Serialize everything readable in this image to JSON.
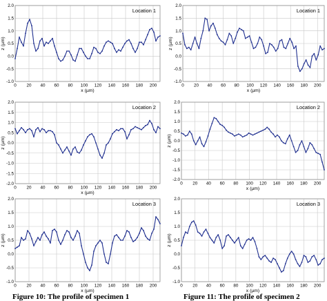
{
  "colors": {
    "line": "#1f2f8f",
    "marker": "#1f2f8f",
    "grid": "#c8c8c8",
    "frame": "#8c8c8c"
  },
  "captions": {
    "left": "Figure 10: The profile of specimen 1",
    "right": "Figure 11: The profile of specimen 2"
  },
  "chart_data": [
    {
      "type": "line",
      "specimen": 1,
      "location": "Location 1",
      "xlabel": "x (µm)",
      "ylabel": "z (µm)",
      "xlim": [
        0,
        210
      ],
      "ylim": [
        -1.0,
        2.0
      ],
      "xticks": [
        0,
        20,
        40,
        60,
        80,
        100,
        120,
        140,
        160,
        180,
        200
      ],
      "yticks": [
        "2.0",
        "1.5",
        "1.0",
        "0.5",
        "0.0",
        "-0.5",
        "-1.0"
      ],
      "x": [
        0,
        3,
        6,
        9,
        12,
        15,
        18,
        21,
        24,
        27,
        30,
        33,
        36,
        39,
        42,
        45,
        48,
        51,
        54,
        57,
        60,
        63,
        66,
        69,
        72,
        75,
        78,
        81,
        84,
        87,
        90,
        93,
        96,
        99,
        102,
        105,
        108,
        111,
        114,
        117,
        120,
        123,
        126,
        129,
        132,
        135,
        138,
        141,
        144,
        147,
        150,
        153,
        156,
        159,
        162,
        165,
        168,
        171,
        174,
        177,
        180,
        183,
        186,
        189,
        192,
        195,
        198,
        201,
        204,
        207,
        210
      ],
      "y": [
        -0.1,
        0.3,
        0.75,
        0.55,
        0.4,
        0.9,
        1.3,
        1.45,
        1.2,
        0.5,
        0.2,
        0.3,
        0.6,
        0.7,
        0.4,
        0.55,
        0.5,
        0.6,
        0.7,
        0.4,
        0.15,
        -0.1,
        -0.2,
        -0.15,
        0.0,
        0.2,
        0.2,
        0.05,
        -0.15,
        -0.2,
        0.05,
        0.3,
        0.3,
        0.15,
        0.0,
        -0.1,
        -0.1,
        0.1,
        0.35,
        0.3,
        0.15,
        0.1,
        0.2,
        0.4,
        0.55,
        0.6,
        0.55,
        0.5,
        0.3,
        0.15,
        0.25,
        0.2,
        0.35,
        0.5,
        0.6,
        0.65,
        0.5,
        0.3,
        0.15,
        0.3,
        0.55,
        0.55,
        0.45,
        0.65,
        0.85,
        1.05,
        1.1,
        0.95,
        0.6,
        0.75,
        0.8
      ]
    },
    {
      "type": "line",
      "specimen": 1,
      "location": "Location 2",
      "xlabel": "x (µm)",
      "ylabel": "z (µm)",
      "xlim": [
        0,
        210
      ],
      "ylim": [
        -2.0,
        2.0
      ],
      "xticks": [
        0,
        20,
        40,
        60,
        80,
        100,
        120,
        140,
        160,
        180,
        200
      ],
      "yticks": [
        "2.0",
        "1.5",
        "1.0",
        "0.5",
        "0.0",
        "-0.5",
        "-1.0",
        "-1.5",
        "-2.0"
      ],
      "x": [
        0,
        3,
        6,
        9,
        12,
        15,
        18,
        21,
        24,
        27,
        30,
        33,
        36,
        39,
        42,
        45,
        48,
        51,
        54,
        57,
        60,
        63,
        66,
        69,
        72,
        75,
        78,
        81,
        84,
        87,
        90,
        93,
        96,
        99,
        102,
        105,
        108,
        111,
        114,
        117,
        120,
        123,
        126,
        129,
        132,
        135,
        138,
        141,
        144,
        147,
        150,
        153,
        156,
        159,
        162,
        165,
        168,
        171,
        174,
        177,
        180,
        183,
        186,
        189,
        192,
        195,
        198,
        201,
        204,
        207,
        210
      ],
      "y": [
        0.7,
        0.45,
        0.6,
        0.75,
        0.65,
        0.5,
        0.65,
        0.7,
        0.6,
        0.3,
        0.65,
        0.75,
        0.55,
        0.7,
        0.65,
        0.5,
        0.6,
        0.6,
        0.55,
        0.4,
        0.0,
        -0.1,
        -0.3,
        -0.5,
        -0.35,
        -0.2,
        -0.4,
        -0.6,
        -0.3,
        -0.2,
        -0.45,
        -0.5,
        -0.35,
        -0.1,
        0.1,
        0.3,
        0.4,
        0.45,
        0.3,
        0.0,
        -0.3,
        -0.6,
        -0.75,
        -0.5,
        -0.1,
        0.0,
        0.2,
        0.45,
        0.55,
        0.65,
        0.6,
        0.7,
        0.7,
        0.55,
        0.2,
        0.4,
        0.65,
        0.7,
        0.8,
        0.75,
        0.7,
        0.65,
        0.75,
        0.85,
        0.9,
        1.1,
        0.95,
        0.65,
        0.5,
        0.8,
        0.7
      ]
    },
    {
      "type": "line",
      "specimen": 1,
      "location": "Location 3",
      "xlabel": "x (µm)",
      "ylabel": "z (µm)",
      "xlim": [
        0,
        210
      ],
      "ylim": [
        -1.0,
        2.0
      ],
      "xticks": [
        0,
        20,
        40,
        60,
        80,
        100,
        120,
        140,
        160,
        180,
        200
      ],
      "yticks": [
        "2.0",
        "1.5",
        "1.0",
        "0.5",
        "0.0",
        "-0.5",
        "-1.0"
      ],
      "x": [
        0,
        3,
        6,
        9,
        12,
        15,
        18,
        21,
        24,
        27,
        30,
        33,
        36,
        39,
        42,
        45,
        48,
        51,
        54,
        57,
        60,
        63,
        66,
        69,
        72,
        75,
        78,
        81,
        84,
        87,
        90,
        93,
        96,
        99,
        102,
        105,
        108,
        111,
        114,
        117,
        120,
        123,
        126,
        129,
        132,
        135,
        138,
        141,
        144,
        147,
        150,
        153,
        156,
        159,
        162,
        165,
        168,
        171,
        174,
        177,
        180,
        183,
        186,
        189,
        192,
        195,
        198,
        201,
        204,
        207,
        210
      ],
      "y": [
        0.2,
        0.25,
        0.3,
        0.6,
        0.5,
        0.55,
        0.85,
        0.75,
        0.55,
        0.3,
        0.45,
        0.6,
        0.5,
        0.7,
        0.8,
        0.65,
        0.55,
        0.4,
        0.85,
        0.9,
        0.8,
        0.5,
        0.35,
        0.5,
        0.7,
        0.85,
        0.8,
        0.6,
        0.5,
        0.65,
        0.85,
        0.75,
        0.3,
        0.0,
        -0.3,
        -0.5,
        -0.6,
        -0.4,
        0.1,
        0.3,
        0.4,
        0.5,
        0.4,
        0.0,
        -0.3,
        -0.35,
        0.0,
        0.4,
        0.65,
        0.7,
        0.6,
        0.5,
        0.5,
        0.65,
        0.85,
        0.8,
        0.6,
        0.45,
        0.5,
        0.6,
        0.75,
        0.95,
        0.85,
        0.65,
        0.55,
        0.5,
        0.75,
        0.9,
        1.35,
        1.25,
        1.1
      ]
    },
    {
      "type": "line",
      "specimen": 2,
      "location": "Location 1",
      "xlabel": "x (µm)",
      "ylabel": "z (µm)",
      "xlim": [
        0,
        210
      ],
      "ylim": [
        -1.0,
        2.0
      ],
      "xticks": [
        0,
        20,
        40,
        60,
        80,
        100,
        120,
        140,
        160,
        180,
        200
      ],
      "yticks": [
        "2.0",
        "1.5",
        "1.0",
        "0.5",
        "0.0",
        "-0.5",
        "-1.0"
      ],
      "x": [
        0,
        3,
        6,
        9,
        12,
        15,
        18,
        21,
        24,
        27,
        30,
        33,
        36,
        39,
        42,
        45,
        48,
        51,
        54,
        57,
        60,
        63,
        66,
        69,
        72,
        75,
        78,
        81,
        84,
        87,
        90,
        93,
        96,
        99,
        102,
        105,
        108,
        111,
        114,
        117,
        120,
        123,
        126,
        129,
        132,
        135,
        138,
        141,
        144,
        147,
        150,
        153,
        156,
        159,
        162,
        165,
        168,
        171,
        174,
        177,
        180,
        183,
        186,
        189,
        192,
        195,
        198,
        201,
        204,
        207,
        210
      ],
      "y": [
        0.9,
        0.45,
        0.3,
        0.35,
        0.25,
        0.5,
        0.75,
        0.5,
        0.3,
        0.7,
        1.0,
        1.5,
        1.45,
        1.0,
        1.2,
        1.3,
        1.1,
        0.85,
        0.7,
        0.6,
        0.55,
        0.45,
        0.65,
        0.9,
        0.8,
        0.5,
        0.7,
        0.95,
        1.1,
        1.05,
        1.0,
        0.7,
        0.75,
        0.8,
        0.55,
        0.3,
        0.35,
        0.5,
        0.75,
        0.65,
        0.4,
        0.1,
        0.15,
        0.5,
        0.45,
        0.35,
        0.2,
        0.3,
        0.6,
        0.65,
        0.35,
        0.3,
        0.5,
        0.7,
        0.55,
        0.3,
        0.4,
        -0.4,
        -0.6,
        -0.5,
        -0.3,
        -0.15,
        -0.35,
        -0.45,
        0.0,
        0.1,
        -0.15,
        0.05,
        0.4,
        0.25,
        0.3
      ]
    },
    {
      "type": "line",
      "specimen": 2,
      "location": "Location 2",
      "xlabel": "x (µm)",
      "ylabel": "z (µm)",
      "xlim": [
        0,
        210
      ],
      "ylim": [
        -2.0,
        2.0
      ],
      "xticks": [
        0,
        20,
        40,
        60,
        80,
        100,
        120,
        140,
        160,
        180,
        200
      ],
      "yticks": [
        "2.0",
        "1.5",
        "1.0",
        "0.5",
        "0.0",
        "-0.5",
        "-1.0",
        "-1.5",
        "-2.0"
      ],
      "x": [
        0,
        3,
        6,
        9,
        12,
        15,
        18,
        21,
        24,
        27,
        30,
        33,
        36,
        39,
        42,
        45,
        48,
        51,
        54,
        57,
        60,
        63,
        66,
        69,
        72,
        75,
        78,
        81,
        84,
        87,
        90,
        93,
        96,
        99,
        102,
        105,
        108,
        111,
        114,
        117,
        120,
        123,
        126,
        129,
        132,
        135,
        138,
        141,
        144,
        147,
        150,
        153,
        156,
        159,
        162,
        165,
        168,
        171,
        174,
        177,
        180,
        183,
        186,
        189,
        192,
        195,
        198,
        201,
        204,
        207,
        210
      ],
      "y": [
        0.4,
        0.35,
        0.25,
        0.3,
        0.5,
        0.35,
        0.0,
        -0.2,
        0.0,
        0.2,
        -0.15,
        -0.3,
        -0.05,
        0.25,
        0.6,
        0.9,
        1.2,
        1.15,
        1.0,
        0.85,
        0.8,
        0.7,
        0.55,
        0.45,
        0.4,
        0.35,
        0.25,
        0.3,
        0.35,
        0.3,
        0.2,
        0.25,
        0.3,
        0.4,
        0.35,
        0.3,
        0.35,
        0.4,
        0.45,
        0.5,
        0.55,
        0.6,
        0.7,
        0.6,
        0.45,
        0.35,
        0.2,
        0.3,
        0.2,
        0.0,
        -0.1,
        -0.15,
        0.1,
        0.3,
        0.0,
        -0.3,
        -0.6,
        -0.5,
        -0.2,
        0.0,
        -0.3,
        -0.6,
        -0.4,
        -0.1,
        -0.2,
        -0.4,
        -0.6,
        -0.65,
        -0.7,
        -1.1,
        -1.5
      ]
    },
    {
      "type": "line",
      "specimen": 2,
      "location": "Location 3",
      "xlabel": "x (µm)",
      "ylabel": "z (µm)",
      "xlim": [
        0,
        210
      ],
      "ylim": [
        -1.0,
        2.0
      ],
      "xticks": [
        0,
        20,
        40,
        60,
        80,
        100,
        120,
        140,
        160,
        180,
        200
      ],
      "yticks": [
        "2.0",
        "1.5",
        "1.0",
        "0.5",
        "0.0",
        "-0.5",
        "-1.0"
      ],
      "x": [
        0,
        3,
        6,
        9,
        12,
        15,
        18,
        21,
        24,
        27,
        30,
        33,
        36,
        39,
        42,
        45,
        48,
        51,
        54,
        57,
        60,
        63,
        66,
        69,
        72,
        75,
        78,
        81,
        84,
        87,
        90,
        93,
        96,
        99,
        102,
        105,
        108,
        111,
        114,
        117,
        120,
        123,
        126,
        129,
        132,
        135,
        138,
        141,
        144,
        147,
        150,
        153,
        156,
        159,
        162,
        165,
        168,
        171,
        174,
        177,
        180,
        183,
        186,
        189,
        192,
        195,
        198,
        201,
        204,
        207,
        210
      ],
      "y": [
        0.3,
        0.6,
        0.8,
        0.75,
        1.0,
        1.15,
        1.2,
        1.05,
        0.8,
        0.75,
        0.65,
        0.8,
        0.9,
        0.75,
        0.6,
        0.5,
        0.4,
        0.6,
        0.7,
        0.5,
        0.2,
        0.3,
        0.65,
        0.7,
        0.6,
        0.5,
        0.4,
        0.5,
        0.6,
        0.3,
        0.2,
        0.35,
        0.5,
        0.55,
        0.5,
        0.6,
        0.45,
        0.2,
        -0.1,
        -0.2,
        -0.1,
        -0.05,
        -0.15,
        -0.25,
        -0.3,
        -0.15,
        -0.2,
        -0.35,
        -0.5,
        -0.65,
        -0.6,
        -0.35,
        -0.15,
        0.0,
        0.1,
        0.0,
        -0.2,
        -0.35,
        -0.45,
        -0.3,
        -0.05,
        -0.1,
        -0.3,
        -0.25,
        -0.1,
        -0.05,
        -0.2,
        -0.4,
        -0.35,
        -0.2,
        -0.15
      ]
    }
  ]
}
